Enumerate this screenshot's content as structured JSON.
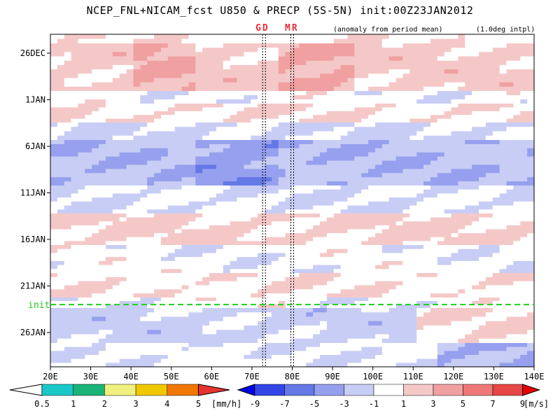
{
  "title": "NCEP_FNL+NICAM_fcst U850 & PRECP (5S-5N) init:00Z23JAN2012",
  "subtitle_left": "(anomaly from period mean)",
  "subtitle_right": "(1.0deg intpl)",
  "markers": [
    {
      "label": "GD",
      "lon": 73
    },
    {
      "label": "MR",
      "lon": 80
    }
  ],
  "init_label": "init",
  "chart_data": {
    "type": "heatmap",
    "x_axis": {
      "range": [
        20,
        140
      ],
      "ticks": [
        "20E",
        "30E",
        "40E",
        "50E",
        "60E",
        "70E",
        "80E",
        "90E",
        "100E",
        "110E",
        "120E",
        "130E",
        "140E"
      ]
    },
    "y_axis": {
      "ticks": [
        "26DEC",
        "1JAN",
        "6JAN",
        "11JAN",
        "16JAN",
        "21JAN",
        "26JAN"
      ],
      "direction": "time increases downward"
    },
    "init_date": "23JAN",
    "precip_colorbar": {
      "labels": [
        "0.5",
        "1",
        "2",
        "3",
        "4",
        "5"
      ],
      "unit": "[mm/h]",
      "colors": [
        "#ffffff",
        "#19c8c8",
        "#1ab478",
        "#f0f080",
        "#f0c800",
        "#f07800",
        "#e83232"
      ]
    },
    "u850_colorbar": {
      "labels": [
        "-9",
        "-7",
        "-5",
        "-3",
        "-1",
        "1",
        "3",
        "5",
        "7",
        "9"
      ],
      "unit": "[m/s]",
      "colors": [
        "#0000e6",
        "#3246e6",
        "#6478e6",
        "#96a0ee",
        "#c8cdf5",
        "#ffffff",
        "#f5c8c8",
        "#f0a0a0",
        "#ee7878",
        "#e64646",
        "#e60000"
      ]
    }
  }
}
